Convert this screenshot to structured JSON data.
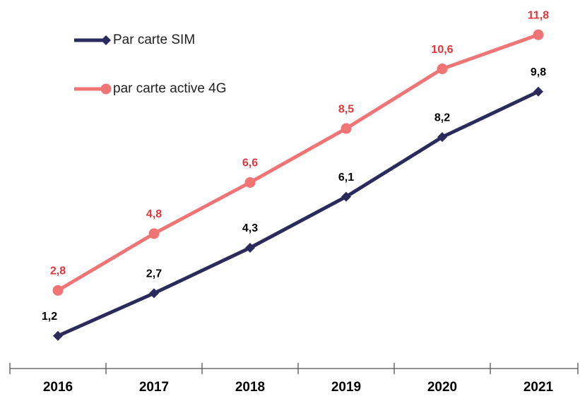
{
  "chart_data": {
    "type": "line",
    "categories": [
      "2016",
      "2017",
      "2018",
      "2019",
      "2020",
      "2021"
    ],
    "series": [
      {
        "name": "Par carte SIM",
        "color": "#2b2a5c",
        "label_color": "#000000",
        "marker": "diamond",
        "values": [
          1.2,
          2.7,
          4.3,
          6.1,
          8.2,
          9.8
        ],
        "value_labels": [
          "1,2",
          "2,7",
          "4,3",
          "6,1",
          "8,2",
          "9,8"
        ]
      },
      {
        "name": "par carte active 4G",
        "color": "#ef7476",
        "label_color": "#e2363c",
        "marker": "circle",
        "values": [
          2.8,
          4.8,
          6.6,
          8.5,
          10.6,
          11.8
        ],
        "value_labels": [
          "2,8",
          "4,8",
          "6,6",
          "8,5",
          "10,6",
          "11,8"
        ]
      }
    ],
    "ylim": [
      0,
      13
    ]
  }
}
